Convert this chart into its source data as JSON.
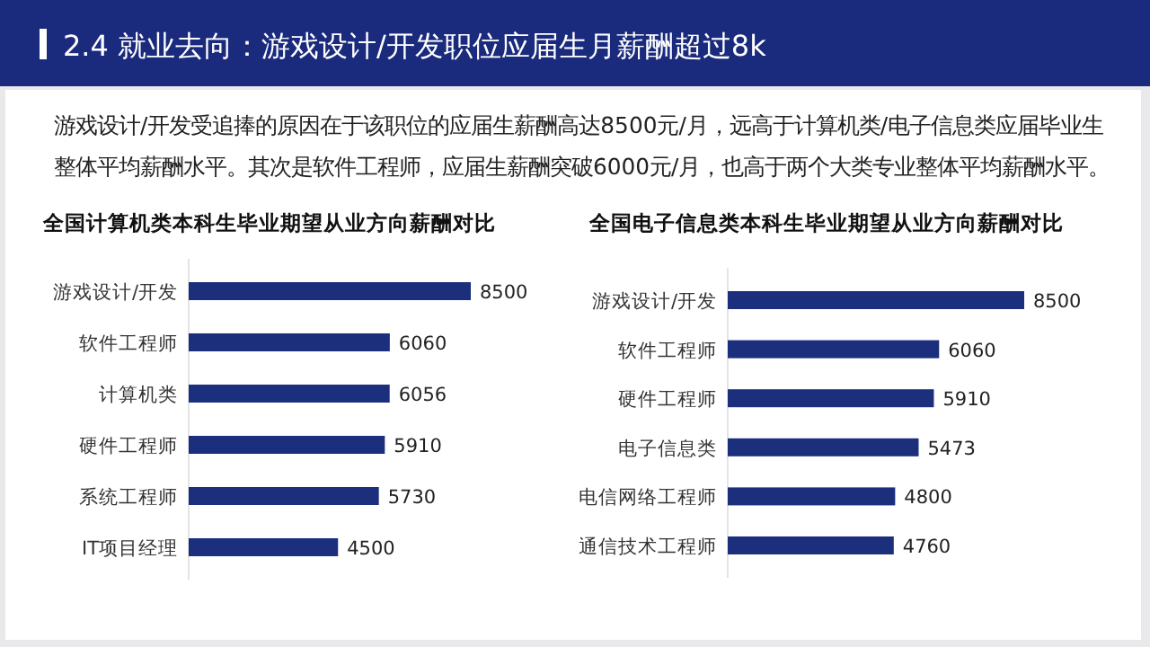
{
  "chart_data": [
    {
      "type": "other",
      "title": "2.4 就业去向：游戏设计/开发职位应届生月薪酬超过8k",
      "subtitle": "游戏设计/开发受追捧的原因在于该职位的应届生薪酬高达8500元/月，远高于计算机类/电子信息类应届毕业生整体平均薪酬水平。其次是软件工程师，应届生薪酬突破6000元/月，也高于两个大类专业整体平均薪酬水平。"
    },
    {
      "type": "bar",
      "orientation": "horizontal",
      "title": "全国计算机类本科生毕业期望从业方向薪酬对比",
      "categories": [
        "游戏设计/开发",
        "软件工程师",
        "计算机类",
        "硬件工程师",
        "系统工程师",
        "IT项目经理"
      ],
      "values": [
        8500,
        6060,
        6056,
        5910,
        5730,
        4500
      ],
      "color": "#1b2f7c",
      "data_labels": true
    },
    {
      "type": "bar",
      "orientation": "horizontal",
      "title": "全国电子信息类本科生毕业期望从业方向薪酬对比",
      "categories": [
        "游戏设计/开发",
        "软件工程师",
        "硬件工程师",
        "电子信息类",
        "电信网络工程师",
        "通信技术工程师"
      ],
      "values": [
        8500,
        6060,
        5910,
        5473,
        4800,
        4760
      ],
      "color": "#1b2f7c",
      "data_labels": true
    }
  ]
}
